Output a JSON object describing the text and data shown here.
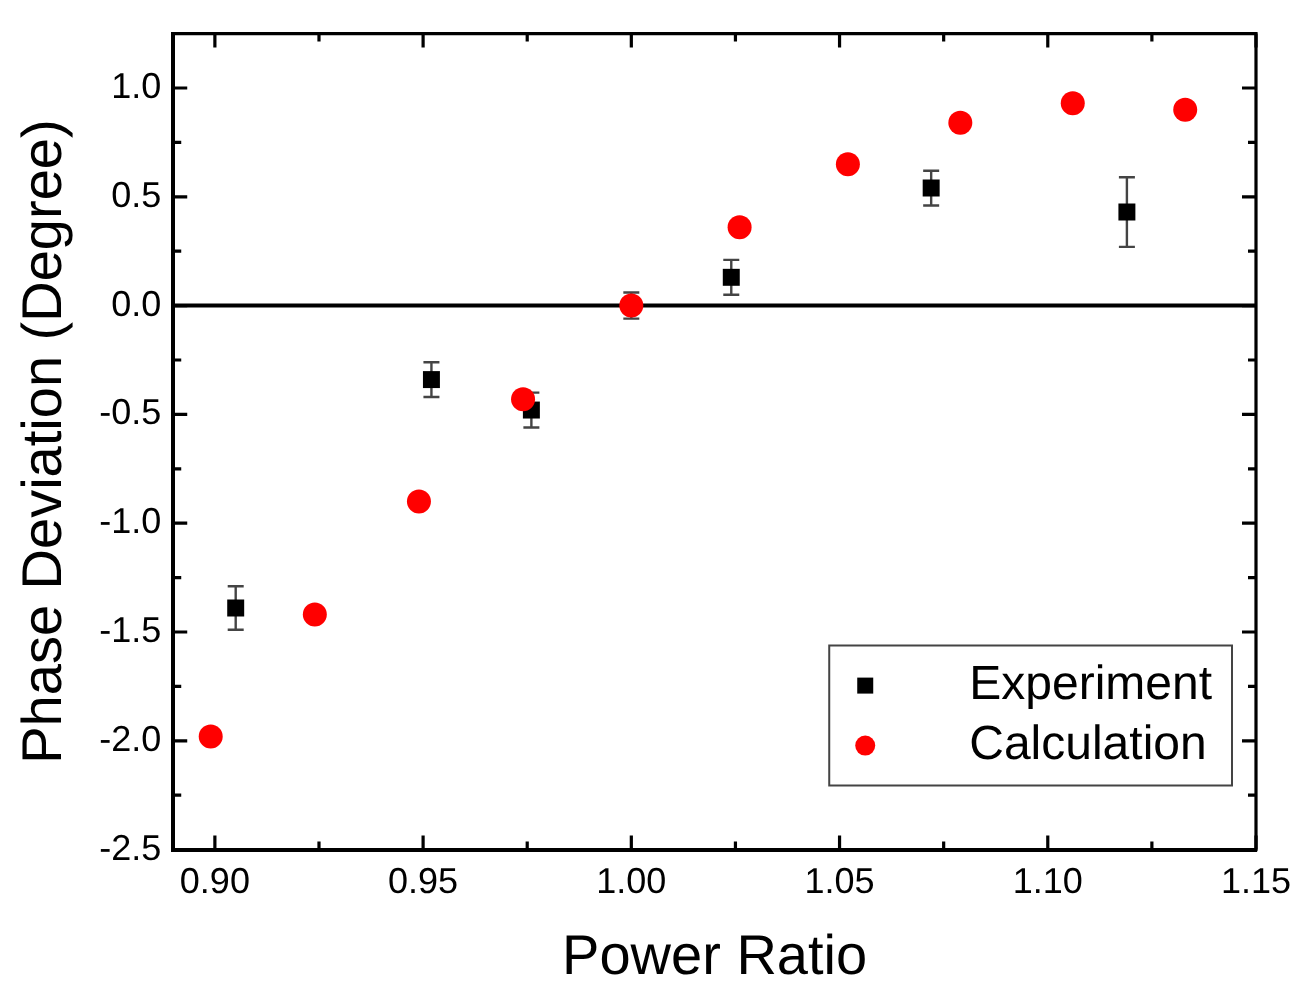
{
  "chart_data": {
    "type": "scatter",
    "xlabel": "Power Ratio",
    "ylabel": "Phase Deviation (Degree)",
    "xlim": [
      0.89,
      1.15
    ],
    "xticks": [
      {
        "value": 0.9,
        "label": "0.90"
      },
      {
        "value": 0.95,
        "label": "0.95"
      },
      {
        "value": 1,
        "label": "1.00"
      },
      {
        "value": 1.05,
        "label": "1.05"
      },
      {
        "value": 1.1,
        "label": "1.10"
      },
      {
        "value": 1.15,
        "label": "1.15"
      }
    ],
    "ylim": [
      -2.5,
      1.25
    ],
    "yticks": [
      {
        "value": -2.5,
        "label": "-2.5"
      },
      {
        "value": -2,
        "label": "-2.0"
      },
      {
        "value": -1.5,
        "label": "-1.5"
      },
      {
        "value": -1,
        "label": "-1.0"
      },
      {
        "value": -0.5,
        "label": "-0.5"
      },
      {
        "value": 0,
        "label": "0.0"
      },
      {
        "value": 0.5,
        "label": "0.5"
      },
      {
        "value": 1,
        "label": "1.0"
      }
    ],
    "grid": false,
    "legend": "bottom right",
    "ref_lines": [
      {
        "axis": "y",
        "value": 0,
        "color": "#000000"
      }
    ],
    "series": [
      {
        "name": "Experiment",
        "color": "#000000",
        "marker": "square",
        "x": [
          0.905,
          0.952,
          0.976,
          1.0,
          1.024,
          1.072,
          1.119
        ],
        "values": [
          -1.39,
          -0.34,
          -0.48,
          0,
          0.13,
          0.54,
          0.43
        ],
        "errors": [
          0.1,
          0.08,
          0.08,
          0.06,
          0.08,
          0.08,
          0.16
        ]
      },
      {
        "name": "Calculation",
        "color": "#ff0000",
        "marker": "circle",
        "x": [
          0.899,
          0.924,
          0.949,
          0.974,
          1.0,
          1.026,
          1.052,
          1.079,
          1.106,
          1.133
        ],
        "values": [
          -1.98,
          -1.42,
          -0.9,
          -0.43,
          0,
          0.36,
          0.65,
          0.84,
          0.93,
          0.9
        ]
      }
    ]
  }
}
